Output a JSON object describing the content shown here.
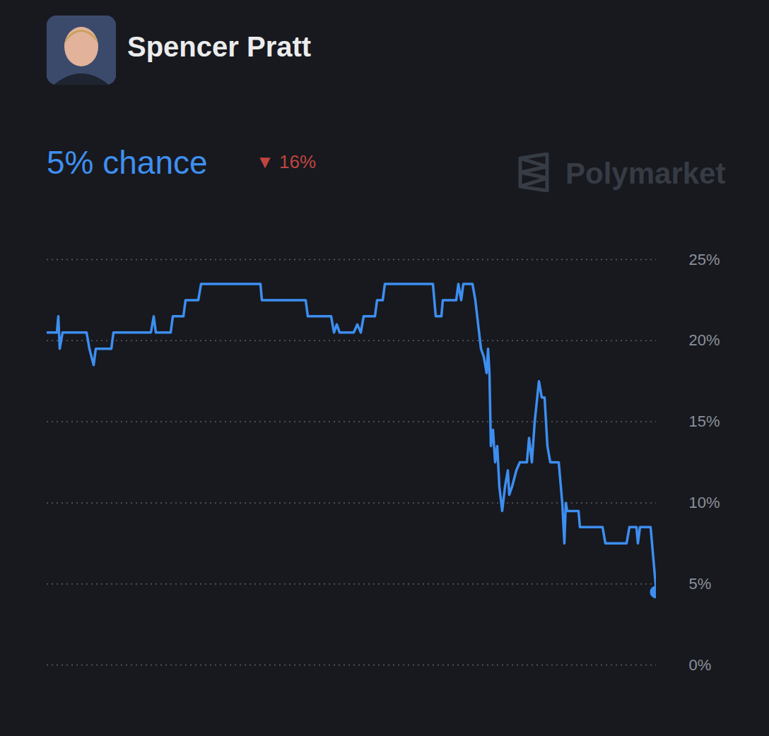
{
  "chart_data": {
    "type": "line",
    "title": "Spencer Pratt",
    "subtitle": "5% chance",
    "annotations": [
      {
        "text": "▼ 16%",
        "color": "#c0453f"
      },
      {
        "text": "Polymarket",
        "color": "#363b44"
      }
    ],
    "color": "#3d8ef0",
    "marker": "circle",
    "grid": true,
    "tick_labels": "y",
    "xlim": [
      0,
      862
    ],
    "ylim": [
      0,
      25
    ],
    "yticks": [
      {
        "value": 0,
        "label": "0%"
      },
      {
        "value": 5,
        "label": "5%"
      },
      {
        "value": 10,
        "label": "10%"
      },
      {
        "value": 15,
        "label": "15%"
      },
      {
        "value": 20,
        "label": "20%"
      },
      {
        "value": 25,
        "label": "25%"
      }
    ],
    "x": [
      0,
      14,
      16,
      18,
      22,
      56,
      60,
      66,
      69,
      91,
      94,
      147,
      151,
      154,
      175,
      178,
      193,
      196,
      214,
      218,
      302,
      304,
      366,
      369,
      402,
      406,
      410,
      414,
      434,
      439,
      444,
      448,
      464,
      467,
      475,
      478,
      546,
      550,
      558,
      560,
      579,
      582,
      586,
      589,
      602,
      606,
      610,
      614,
      618,
      622,
      624,
      626,
      628,
      631,
      634,
      637,
      640,
      644,
      648,
      652,
      654,
      658,
      664,
      669,
      679,
      682,
      686,
      690,
      696,
      700,
      704,
      708,
      712,
      724,
      729,
      732,
      734,
      736,
      752,
      754,
      786,
      790,
      820,
      824,
      834,
      836,
      839,
      854,
      862
    ],
    "values": [
      20.5,
      20.5,
      21.5,
      19.5,
      20.5,
      20.5,
      19.5,
      18.5,
      19.5,
      19.5,
      20.5,
      20.5,
      21.5,
      20.5,
      20.5,
      21.5,
      21.5,
      22.5,
      22.5,
      23.5,
      23.5,
      22.5,
      22.5,
      21.5,
      21.5,
      20.5,
      21,
      20.5,
      20.5,
      21,
      20.5,
      21.5,
      21.5,
      22.5,
      22.5,
      23.5,
      23.5,
      21.5,
      21.5,
      22.5,
      22.5,
      23.5,
      22.5,
      23.5,
      23.5,
      22.5,
      21,
      19.5,
      19,
      18,
      19.5,
      18,
      13.5,
      14.5,
      12.5,
      13.5,
      11,
      9.5,
      11,
      12,
      10.5,
      11,
      12,
      12.5,
      12.5,
      14,
      12.5,
      15,
      17.5,
      16.5,
      16.5,
      13.5,
      12.5,
      12.5,
      10,
      7.5,
      10,
      9.5,
      9.5,
      8.5,
      8.5,
      7.5,
      7.5,
      8.5,
      8.5,
      7.5,
      8.5,
      8.5,
      4.5
    ]
  }
}
